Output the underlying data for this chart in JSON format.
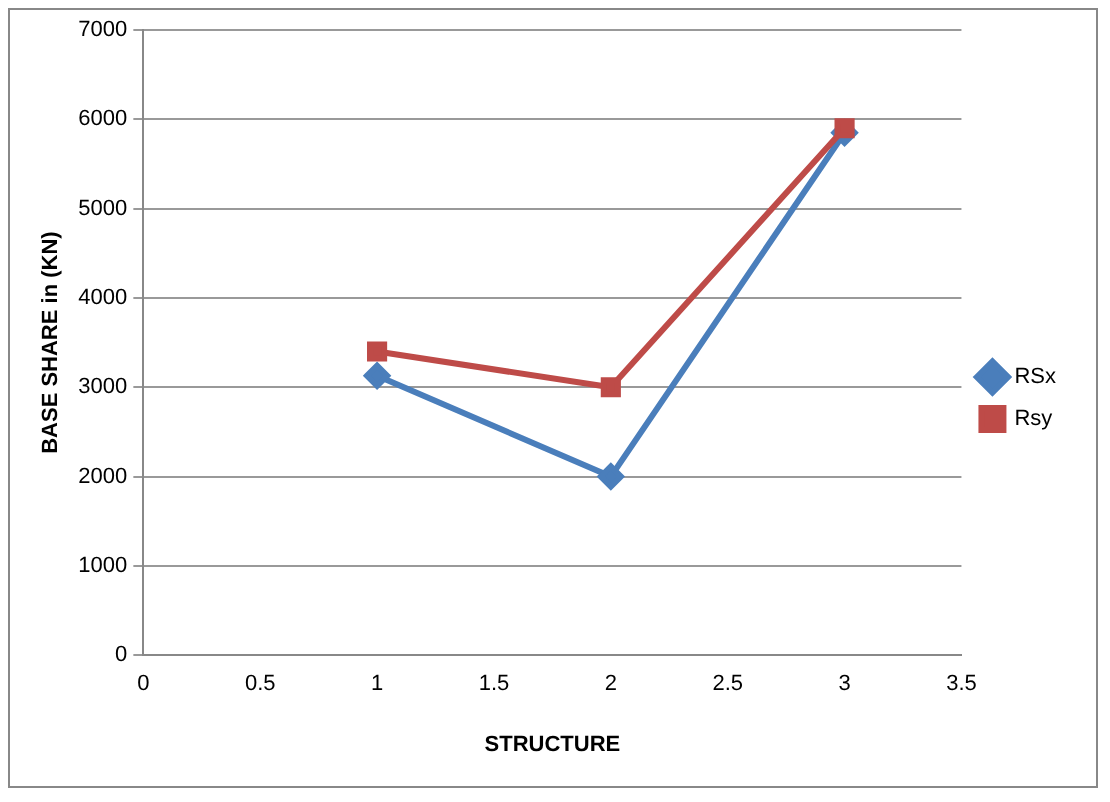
{
  "chart_data": {
    "type": "line",
    "xlabel": "STRUCTURE",
    "ylabel": "BASE SHARE in (KN)",
    "x": [
      1,
      2,
      3
    ],
    "series": [
      {
        "name": "RSx",
        "color": "#4a7ebb",
        "values": [
          3130,
          2000,
          5850
        ],
        "marker": "diamond"
      },
      {
        "name": "Rsy",
        "color": "#be4b48",
        "values": [
          3400,
          3000,
          5900
        ],
        "marker": "square"
      }
    ],
    "xlim": [
      0,
      3.5
    ],
    "xticks": [
      0,
      0.5,
      1,
      1.5,
      2,
      2.5,
      3,
      3.5
    ],
    "ylim": [
      0,
      7000
    ],
    "yticks": [
      0,
      1000,
      2000,
      3000,
      4000,
      5000,
      6000,
      7000
    ],
    "grid": "y",
    "legend": "right",
    "line_style": "solid"
  }
}
